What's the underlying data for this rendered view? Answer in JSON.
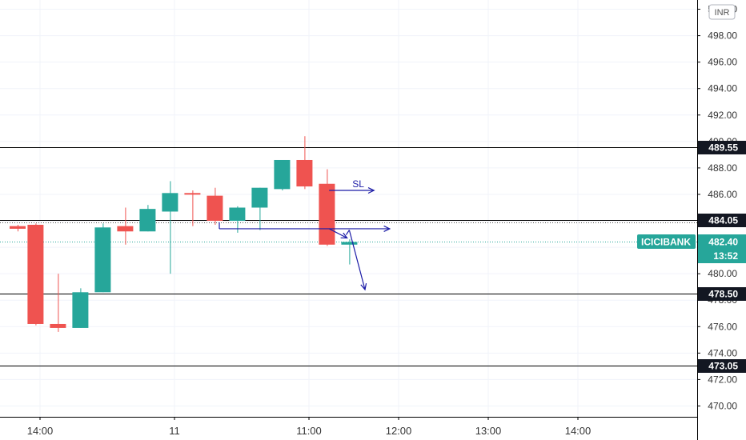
{
  "chart_data": {
    "type": "candlestick",
    "symbol": "ICICIBANK",
    "currency": "INR",
    "last_price": "482.40",
    "countdown": "13:52",
    "ylim": [
      469.0,
      501.0
    ],
    "y_ticks": [
      "470.00",
      "472.00",
      "474.00",
      "476.00",
      "478.00",
      "480.00",
      "482.00",
      "484.00",
      "486.00",
      "488.00",
      "490.00",
      "492.00",
      "494.00",
      "496.00",
      "498.00",
      "500.00"
    ],
    "x_ticks": [
      {
        "label": "14:00",
        "t": 1
      },
      {
        "label": "11",
        "t": 7
      },
      {
        "label": "11:00",
        "t": 13
      },
      {
        "label": "12:00",
        "t": 17
      },
      {
        "label": "13:00",
        "t": 21
      },
      {
        "label": "14:00",
        "t": 25
      }
    ],
    "candles": [
      {
        "t": 0,
        "o": 483.6,
        "h": 483.7,
        "l": 483.2,
        "c": 483.4
      },
      {
        "t": 0.8,
        "o": 483.7,
        "h": 483.8,
        "l": 476.1,
        "c": 476.2
      },
      {
        "t": 1.8,
        "o": 476.2,
        "h": 480.0,
        "l": 475.6,
        "c": 475.9
      },
      {
        "t": 2.8,
        "o": 475.9,
        "h": 478.9,
        "l": 475.9,
        "c": 478.6
      },
      {
        "t": 3.8,
        "o": 478.6,
        "h": 483.8,
        "l": 478.6,
        "c": 483.5
      },
      {
        "t": 4.8,
        "o": 483.6,
        "h": 485.0,
        "l": 482.2,
        "c": 483.2
      },
      {
        "t": 5.8,
        "o": 483.2,
        "h": 485.2,
        "l": 483.2,
        "c": 484.9
      },
      {
        "t": 6.8,
        "o": 484.7,
        "h": 487.0,
        "l": 480.0,
        "c": 486.1
      },
      {
        "t": 7.8,
        "o": 486.1,
        "h": 486.3,
        "l": 483.6,
        "c": 486.0
      },
      {
        "t": 8.8,
        "o": 485.9,
        "h": 486.5,
        "l": 483.7,
        "c": 484.0
      },
      {
        "t": 9.8,
        "o": 484.0,
        "h": 485.1,
        "l": 483.1,
        "c": 485.0
      },
      {
        "t": 10.8,
        "o": 485.0,
        "h": 486.5,
        "l": 483.3,
        "c": 486.5
      },
      {
        "t": 11.8,
        "o": 486.4,
        "h": 488.6,
        "l": 486.3,
        "c": 488.6
      },
      {
        "t": 12.8,
        "o": 488.6,
        "h": 490.4,
        "l": 486.4,
        "c": 486.6
      },
      {
        "t": 13.8,
        "o": 486.8,
        "h": 487.9,
        "l": 482.1,
        "c": 482.2
      },
      {
        "t": 14.8,
        "o": 482.2,
        "h": 482.6,
        "l": 480.7,
        "c": 482.4
      }
    ],
    "levels": [
      {
        "value": 489.55,
        "label": "489.55",
        "style": "solid"
      },
      {
        "value": 484.05,
        "label": "484.05",
        "style": "solid"
      },
      {
        "value": 478.5,
        "label": "478.50",
        "style": "solid"
      },
      {
        "value": 473.05,
        "label": "473.05",
        "style": "solid"
      }
    ],
    "annotations": {
      "sl_label": "SL",
      "sl_arrow": {
        "t0": 13.9,
        "t1": 15.9,
        "y": 486.3
      },
      "range_line": {
        "t0": 9.0,
        "t1": 16.6,
        "y": 483.4
      },
      "break_arrow": {
        "t0": 13.9,
        "y0": 483.4,
        "t1": 14.7,
        "y1": 482.7
      },
      "down_arrow": {
        "t0": 14.8,
        "y0": 483.3,
        "t1": 15.5,
        "y1": 478.8
      }
    },
    "colors": {
      "up": "#26a69a",
      "down": "#ef5350",
      "level_line": "#000000",
      "level_tag": "#131722",
      "price_tag": "#26a69a",
      "annotation": "#1a1aa6",
      "grid": "#f0f3fa"
    },
    "grid": true
  }
}
